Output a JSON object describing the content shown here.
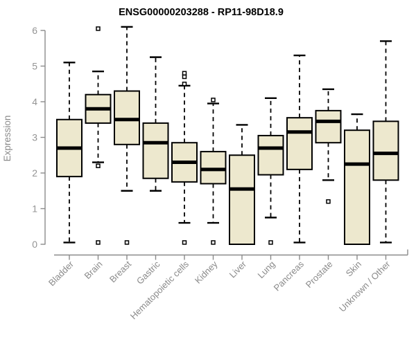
{
  "chart_data": {
    "type": "boxplot",
    "title": "ENSG00000203288 - RP11-98D18.9",
    "ylabel": "Expression",
    "xlabel": "",
    "ylim": [
      0,
      6
    ],
    "yticks": [
      0,
      1,
      2,
      3,
      4,
      5,
      6
    ],
    "grid": false,
    "legend": "none",
    "whisker_style": "dashed",
    "outlier_marker": "open-square",
    "colors": {
      "box_fill": "#EDE8CE",
      "box_border": "#000000",
      "median": "#000000",
      "whisker": "#000000",
      "outlier": "#000000",
      "axis": "#8a8a8a",
      "tick_label": "#949494",
      "axis_label": "#8a8a8a",
      "title": "#000000",
      "background": "#ffffff"
    },
    "categories": [
      "Bladder",
      "Brain",
      "Breast",
      "Gastric",
      "Hematopoietic cells",
      "Kidney",
      "Liver",
      "Lung",
      "Pancreas",
      "Prostate",
      "Skin",
      "Unknown / Other"
    ],
    "series": [
      {
        "category": "Bladder",
        "whisker_low": 0.05,
        "q1": 1.9,
        "median": 2.7,
        "q3": 3.5,
        "whisker_high": 5.1,
        "outliers": []
      },
      {
        "category": "Brain",
        "whisker_low": 2.3,
        "q1": 3.4,
        "median": 3.8,
        "q3": 4.2,
        "whisker_high": 4.85,
        "outliers": [
          6.05,
          2.2,
          0.05
        ]
      },
      {
        "category": "Breast",
        "whisker_low": 1.5,
        "q1": 2.8,
        "median": 3.5,
        "q3": 4.3,
        "whisker_high": 6.1,
        "outliers": [
          0.05
        ]
      },
      {
        "category": "Gastric",
        "whisker_low": 1.5,
        "q1": 1.85,
        "median": 2.85,
        "q3": 3.4,
        "whisker_high": 5.25,
        "outliers": []
      },
      {
        "category": "Hematopoietic cells",
        "whisker_low": 0.6,
        "q1": 1.75,
        "median": 2.3,
        "q3": 2.85,
        "whisker_high": 4.45,
        "outliers": [
          4.8,
          4.7,
          4.5,
          0.05
        ]
      },
      {
        "category": "Kidney",
        "whisker_low": 0.6,
        "q1": 1.7,
        "median": 2.1,
        "q3": 2.6,
        "whisker_high": 3.95,
        "outliers": [
          4.05,
          0.05
        ]
      },
      {
        "category": "Liver",
        "whisker_low": 0.0,
        "q1": 0.0,
        "median": 1.55,
        "q3": 2.5,
        "whisker_high": 3.35,
        "outliers": []
      },
      {
        "category": "Lung",
        "whisker_low": 0.75,
        "q1": 1.95,
        "median": 2.7,
        "q3": 3.05,
        "whisker_high": 4.1,
        "outliers": [
          0.05
        ]
      },
      {
        "category": "Pancreas",
        "whisker_low": 0.05,
        "q1": 2.1,
        "median": 3.15,
        "q3": 3.55,
        "whisker_high": 5.3,
        "outliers": []
      },
      {
        "category": "Prostate",
        "whisker_low": 1.8,
        "q1": 2.85,
        "median": 3.45,
        "q3": 3.75,
        "whisker_high": 4.35,
        "outliers": [
          1.2
        ]
      },
      {
        "category": "Skin",
        "whisker_low": 0.0,
        "q1": 0.0,
        "median": 2.25,
        "q3": 3.2,
        "whisker_high": 3.65,
        "outliers": []
      },
      {
        "category": "Unknown / Other",
        "whisker_low": 0.05,
        "q1": 1.8,
        "median": 2.55,
        "q3": 3.45,
        "whisker_high": 5.7,
        "outliers": []
      }
    ]
  }
}
